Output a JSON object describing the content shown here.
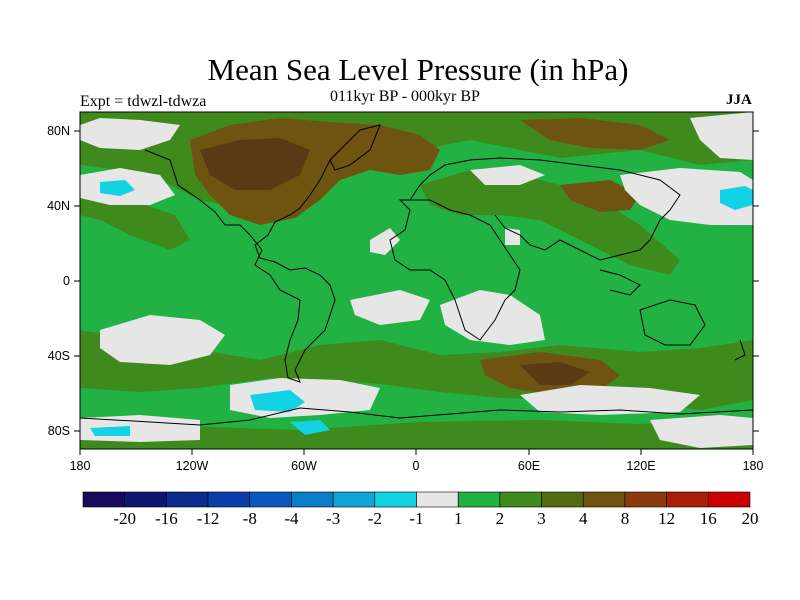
{
  "title": "Mean Sea Level Pressure (in hPa)",
  "subtitle": "011kyr BP - 000kyr BP",
  "experiment": "Expt = tdwzl-tdwza",
  "season": "JJA",
  "lat_ticks": [
    "80N",
    "40N",
    "0",
    "40S",
    "80S"
  ],
  "lon_ticks": [
    "180",
    "120W",
    "60W",
    "0",
    "60E",
    "120E",
    "180"
  ],
  "colorbar": {
    "labels": [
      "-20",
      "-16",
      "-12",
      "-8",
      "-4",
      "-3",
      "-2",
      "-1",
      "1",
      "2",
      "3",
      "4",
      "8",
      "12",
      "16",
      "20"
    ],
    "colors": [
      "#1a0a5c",
      "#0a1670",
      "#0a2a8c",
      "#0a3ea8",
      "#0a58bc",
      "#0a7cc8",
      "#11a2d6",
      "#12d2e4",
      "#e6e6e6",
      "#22b244",
      "#3e8a1c",
      "#526a10",
      "#6e5410",
      "#8a3a0c",
      "#a81e08",
      "#cc0000"
    ]
  },
  "colors": {
    "land_outline": "#000000",
    "green": "#22b244",
    "dark_green": "#3e8a1c",
    "olive": "#6e5410",
    "brown": "#5a3a14",
    "gray": "#e6e6e6",
    "cyan": "#12d2e4"
  }
}
